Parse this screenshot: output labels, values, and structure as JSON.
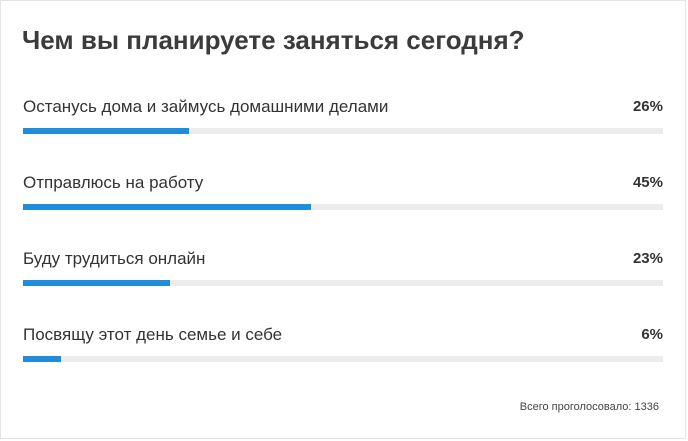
{
  "poll": {
    "title": "Чем вы планируете заняться сегодня?",
    "options": [
      {
        "label": "Останусь дома и займусь домашними делами",
        "percent_text": "26%",
        "fraction": 0.26
      },
      {
        "label": "Отправлюсь на работу",
        "percent_text": "45%",
        "fraction": 0.45
      },
      {
        "label": "Буду трудиться онлайн",
        "percent_text": "23%",
        "fraction": 0.23
      },
      {
        "label": "Посвящу этот день семье и себе",
        "percent_text": "6%",
        "fraction": 0.06
      }
    ],
    "total_votes_text": "Всего проголосовало: 1336"
  },
  "colors": {
    "bar_fill": "#1f8ddc",
    "bar_track": "#ececec",
    "text": "#333333"
  }
}
